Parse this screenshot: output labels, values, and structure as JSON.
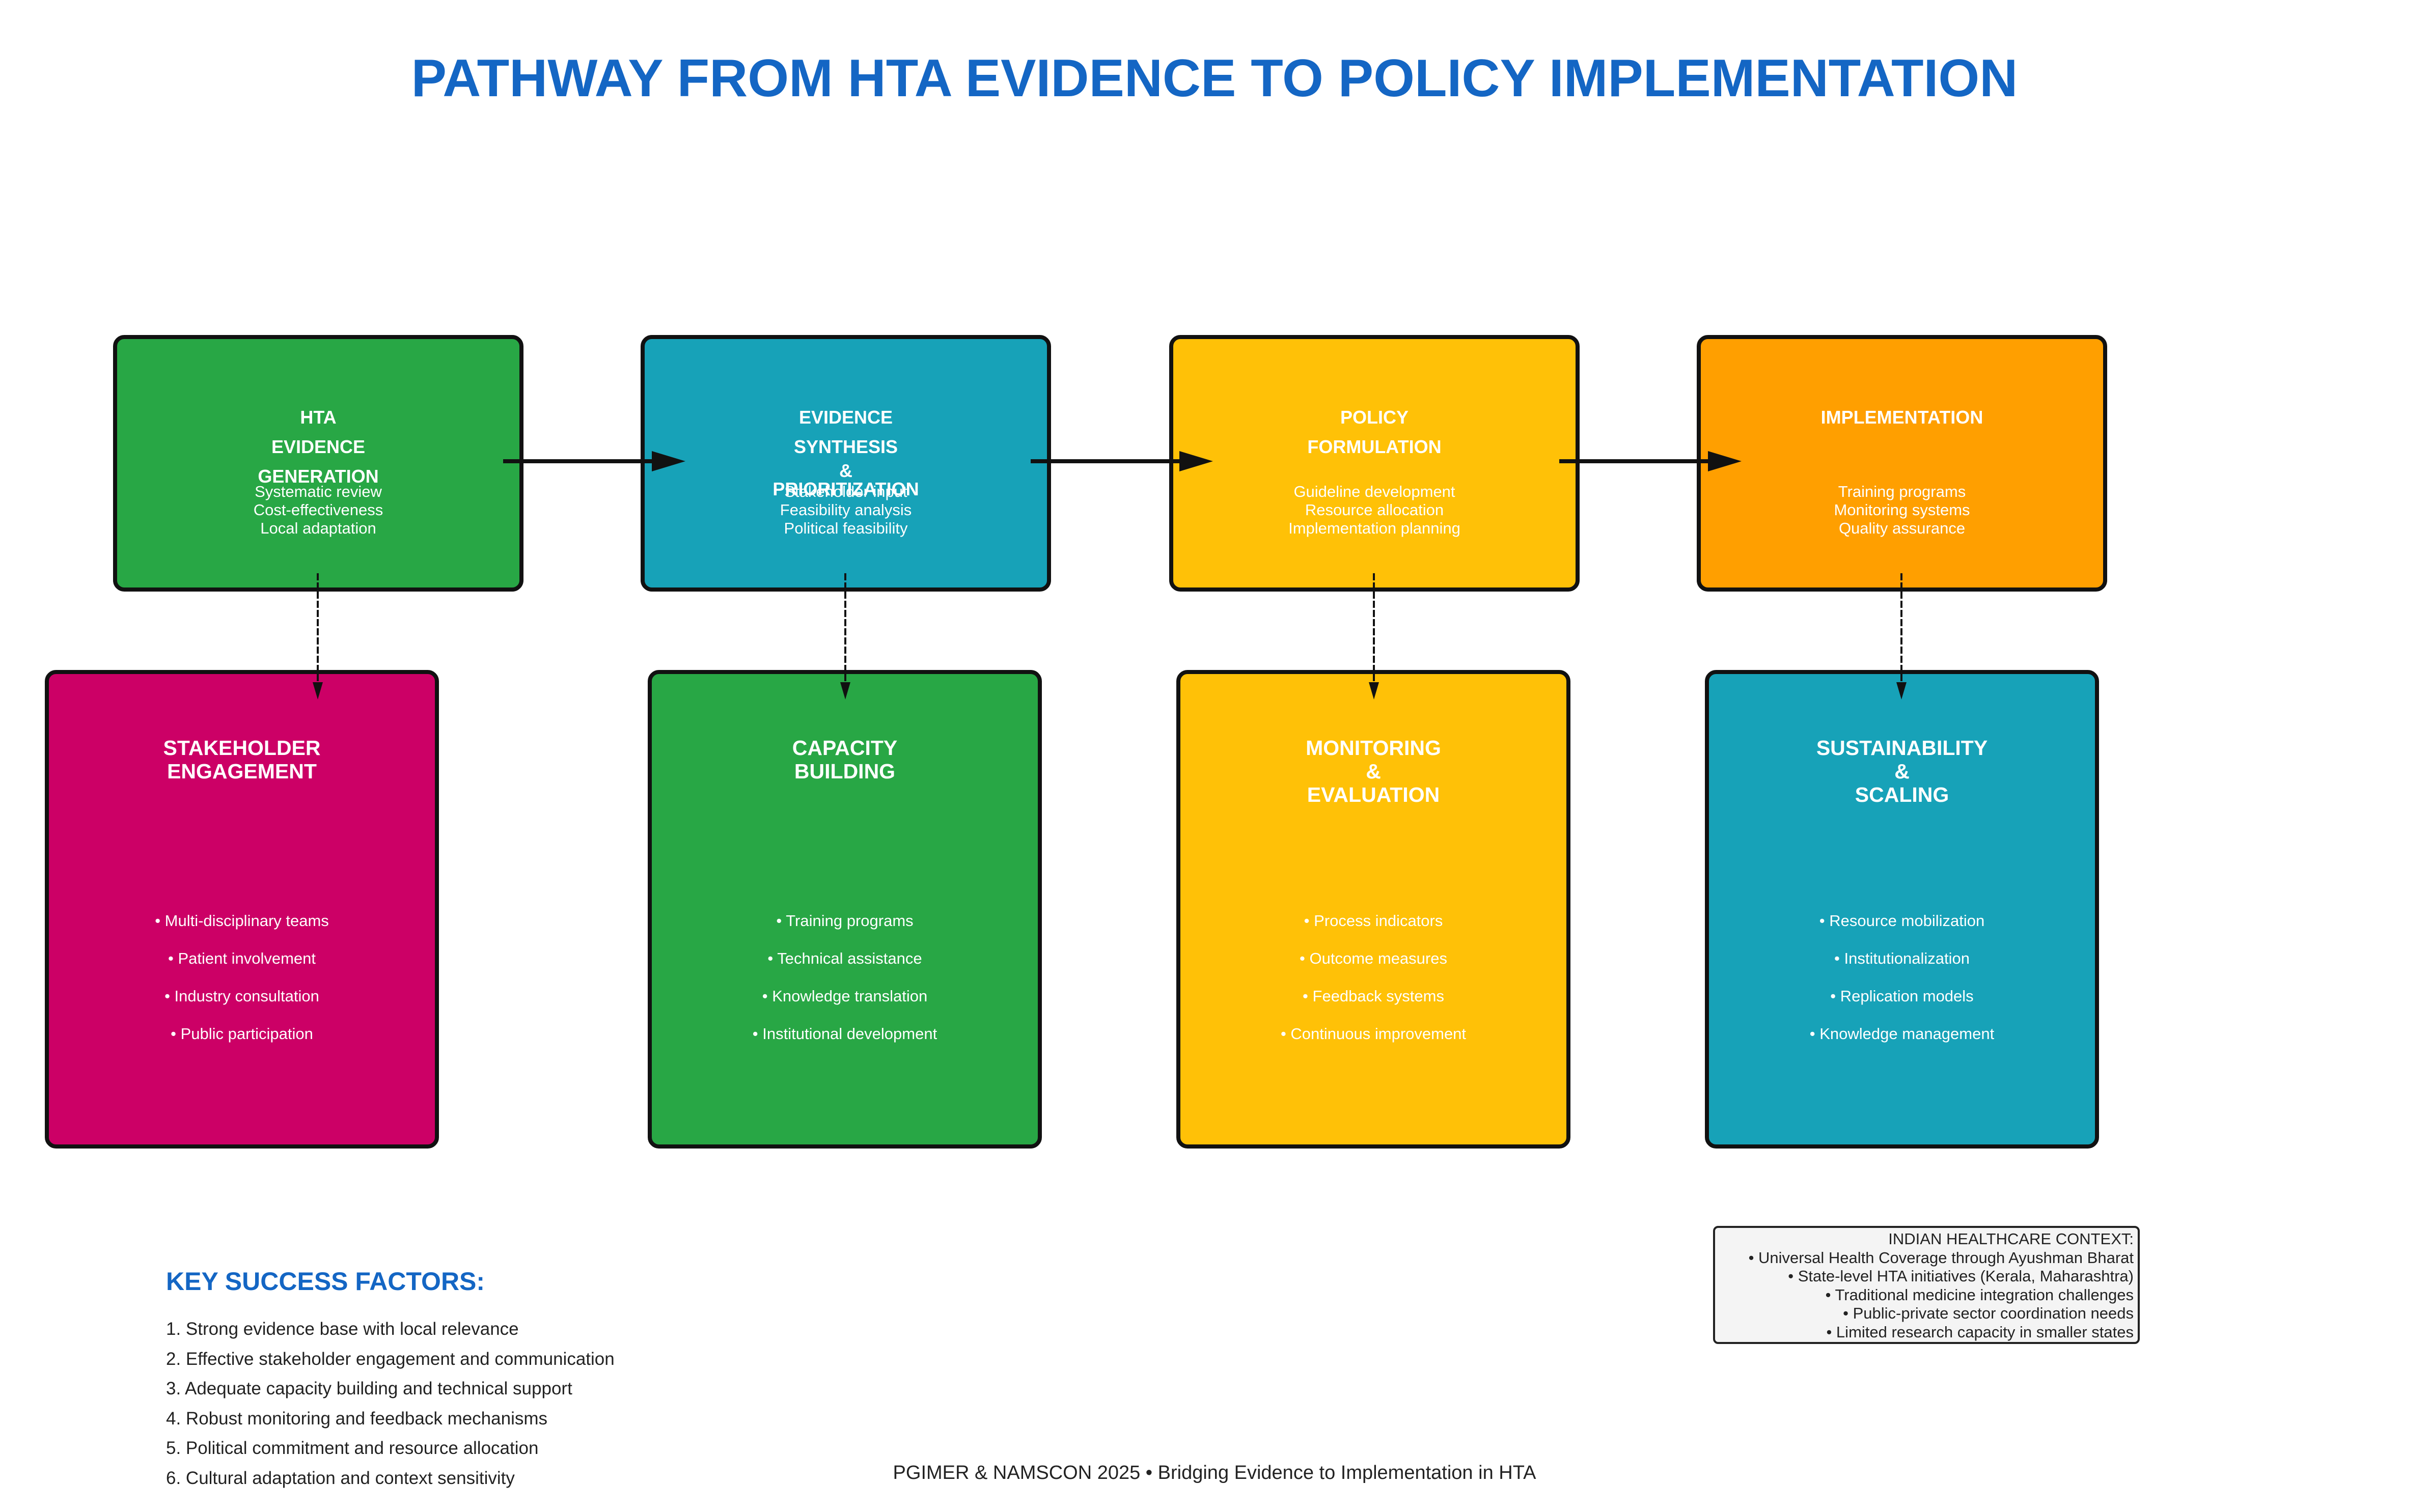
{
  "title": "PATHWAY FROM HTA EVIDENCE TO POLICY IMPLEMENTATION",
  "colors": {
    "green": "#28a745",
    "teal": "#17a2b8",
    "yellow": "#ffc107",
    "orange": "#ff9f00",
    "magenta": "#cc0066",
    "title_blue": "#1466c4"
  },
  "stages": [
    {
      "title_lines": [
        "HTA",
        "EVIDENCE",
        "GENERATION"
      ],
      "details": [
        "Systematic review",
        "Cost-effectiveness",
        "Local adaptation"
      ]
    },
    {
      "title_lines": [
        "EVIDENCE",
        "SYNTHESIS",
        "&",
        "PRIORITIZATION"
      ],
      "details": [
        "Stakeholder input",
        "Feasibility analysis",
        "Political feasibility"
      ]
    },
    {
      "title_lines": [
        "POLICY",
        "FORMULATION"
      ],
      "details": [
        "Guideline development",
        "Resource allocation",
        "Implementation planning"
      ]
    },
    {
      "title_lines": [
        "IMPLEMENTATION"
      ],
      "details": [
        "Training programs",
        "Monitoring systems",
        "Quality assurance"
      ]
    }
  ],
  "supports": [
    {
      "title_lines": [
        "STAKEHOLDER",
        "ENGAGEMENT"
      ],
      "bullets": [
        "• Multi-disciplinary teams",
        "• Patient involvement",
        "• Industry consultation",
        "• Public participation"
      ]
    },
    {
      "title_lines": [
        "CAPACITY",
        "BUILDING"
      ],
      "bullets": [
        "• Training programs",
        "• Technical assistance",
        "• Knowledge translation",
        "• Institutional development"
      ]
    },
    {
      "title_lines": [
        "MONITORING",
        "&",
        "EVALUATION"
      ],
      "bullets": [
        "• Process indicators",
        "• Outcome measures",
        "• Feedback systems",
        "• Continuous improvement"
      ]
    },
    {
      "title_lines": [
        "SUSTAINABILITY",
        "&",
        "SCALING"
      ],
      "bullets": [
        "• Resource mobilization",
        "• Institutionalization",
        "• Replication models",
        "• Knowledge management"
      ]
    }
  ],
  "context": {
    "heading": "INDIAN HEALTHCARE CONTEXT:",
    "items": [
      "• Universal Health Coverage through Ayushman Bharat",
      "• State-level HTA initiatives (Kerala, Maharashtra)",
      "• Traditional medicine integration challenges",
      "• Public-private sector coordination needs",
      "• Limited research capacity in smaller states"
    ]
  },
  "key_success": {
    "heading": "KEY SUCCESS FACTORS:",
    "items": [
      "1. Strong evidence base with local relevance",
      "2. Effective stakeholder engagement and communication",
      "3. Adequate capacity building and technical support",
      "4. Robust monitoring and feedback mechanisms",
      "5. Political commitment and resource allocation",
      "6. Cultural adaptation and context sensitivity"
    ]
  },
  "footer": "PGIMER & NAMSCON 2025 • Bridging Evidence to Implementation in HTA"
}
